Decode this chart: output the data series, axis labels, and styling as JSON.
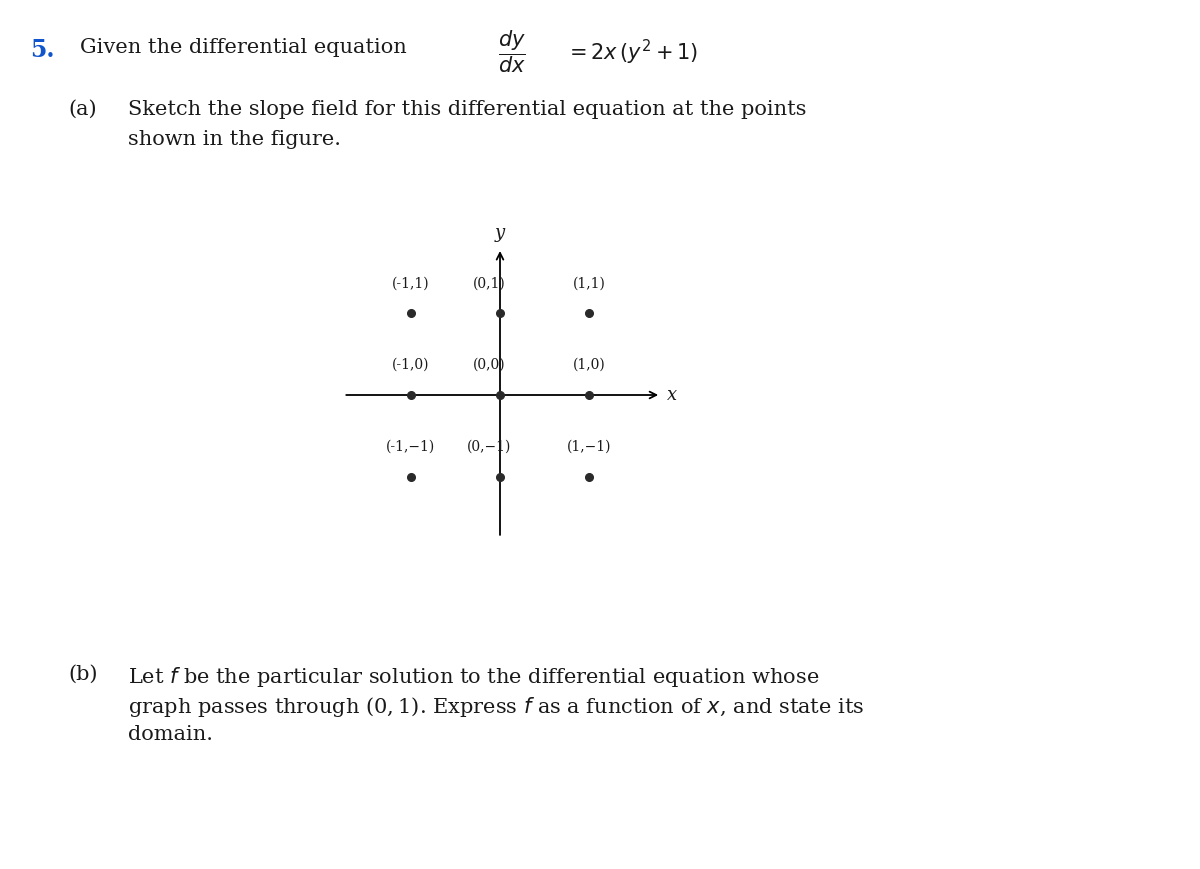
{
  "points": [
    [
      -1,
      1
    ],
    [
      0,
      1
    ],
    [
      1,
      1
    ],
    [
      -1,
      0
    ],
    [
      0,
      0
    ],
    [
      1,
      0
    ],
    [
      -1,
      -1
    ],
    [
      0,
      -1
    ],
    [
      1,
      -1
    ]
  ],
  "point_labels": [
    "(-1,1)",
    "(0,1)",
    "(1,1)",
    "(-1,0)",
    "(0,0)",
    "(1,0)",
    "(-1,−1)",
    "(0,−1)",
    "(1,−1)"
  ],
  "dot_color": "#2a2a2a",
  "dot_size": 5.5,
  "background_color": "#ffffff",
  "text_color": "#1a1a1a",
  "body_fontsize": 15,
  "number_fontsize": 16,
  "label_fontsize": 10,
  "axis_label_fontsize": 13
}
